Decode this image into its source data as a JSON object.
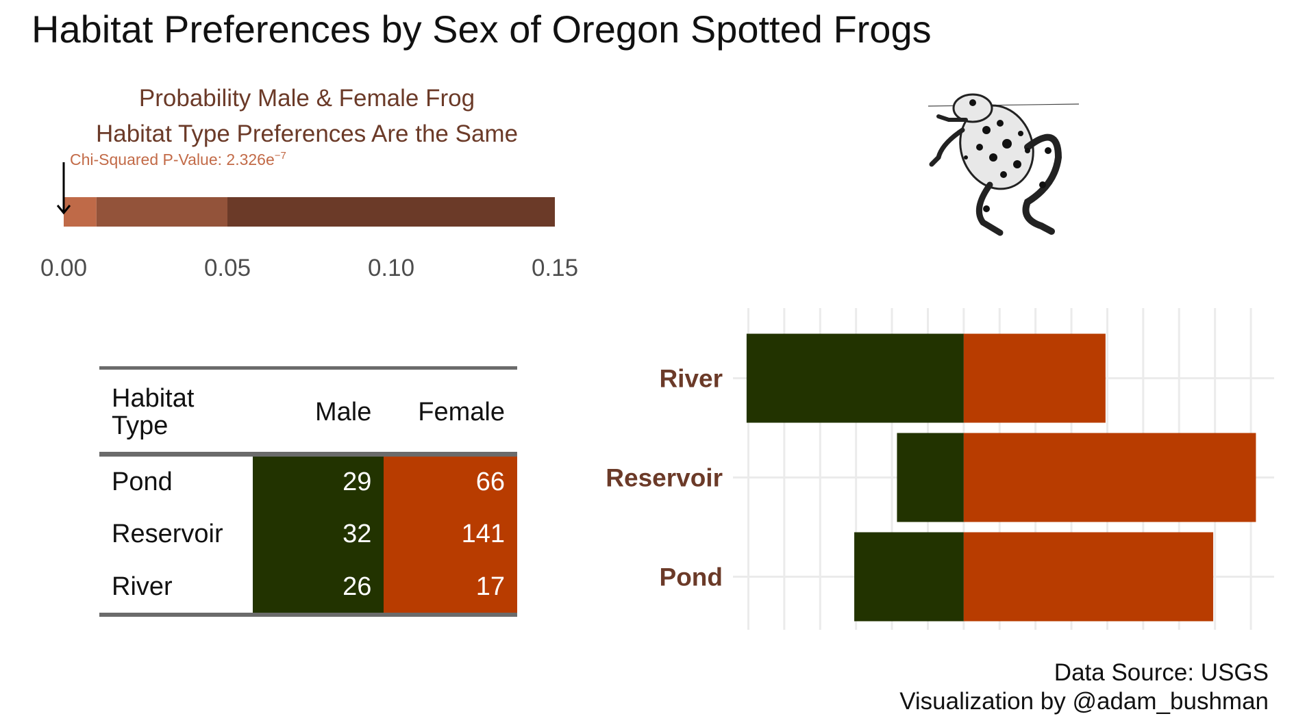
{
  "title": "Habitat Preferences by Sex of Oregon Spotted Frogs",
  "colors": {
    "male": "#223300",
    "female": "#b83c00",
    "accent_text": "#6b3a28"
  },
  "chart_data": [
    {
      "type": "bar",
      "title_lines": [
        "Probability Male & Female Frog",
        "Habitat Type Preferences Are the Same"
      ],
      "annotation": {
        "label": "Chi-Squared P-Value:  2.326e",
        "superscript": "−7",
        "value": 2.326e-07
      },
      "segments": [
        {
          "from": 0.0,
          "to": 0.01,
          "color": "#bf6a48"
        },
        {
          "from": 0.01,
          "to": 0.05,
          "color": "#93533a"
        },
        {
          "from": 0.05,
          "to": 0.15,
          "color": "#6b3a28"
        }
      ],
      "xlim": [
        0,
        0.15
      ],
      "ticks": [
        "0.00",
        "0.05",
        "0.10",
        "0.15"
      ]
    },
    {
      "type": "table",
      "columns": [
        "Habitat Type",
        "Male",
        "Female"
      ],
      "rows": [
        {
          "habitat": "Pond",
          "male": "29",
          "female": "66"
        },
        {
          "habitat": "Reservoir",
          "male": "32",
          "female": "141"
        },
        {
          "habitat": "River",
          "male": "26",
          "female": "17"
        }
      ]
    },
    {
      "type": "bar",
      "orientation": "horizontal-diverging",
      "categories": [
        "River",
        "Reservoir",
        "Pond"
      ],
      "series": [
        {
          "key": "male",
          "values": [
            -0.605,
            -0.186,
            -0.305
          ]
        },
        {
          "key": "female",
          "values": [
            0.395,
            0.814,
            0.695
          ]
        }
      ],
      "xlim": [
        -0.62,
        0.88
      ],
      "grid": true
    }
  ],
  "credits": [
    "Data Source: USGS",
    "Visualization by @adam_bushman"
  ],
  "frog_icon": "spotted-frog-illustration"
}
